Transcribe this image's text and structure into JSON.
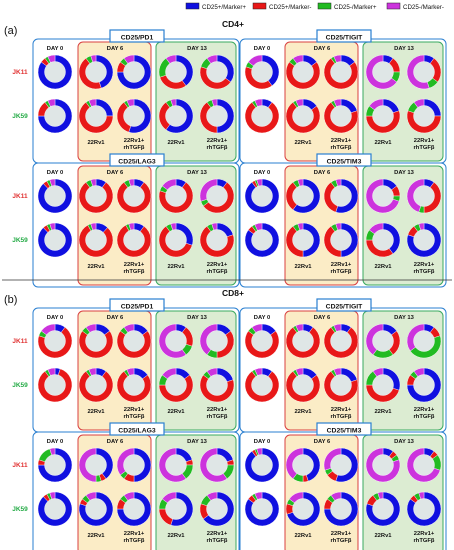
{
  "legend": [
    {
      "label": "CD25+/Marker+",
      "color": "#1010e0"
    },
    {
      "label": "CD25+/Marker-",
      "color": "#e81818"
    },
    {
      "label": "CD25-/Marker+",
      "color": "#22bb22"
    },
    {
      "label": "CD25-/Marker-",
      "color": "#cc33dd"
    }
  ],
  "colors": {
    "day0_box": "#2a7fd0",
    "day6_fill": "#fbecc6",
    "day6_border": "#d94040",
    "day13_fill": "#dcecd2",
    "day13_border": "#3aaa60",
    "panel_border": "#2a7fd0",
    "ring_hole": "#dfe6e6",
    "row_jk11": "#e03030",
    "row_jk59": "#22aa44"
  },
  "labels": {
    "day0": "DAY 0",
    "day6": "DAY 6",
    "day13": "DAY 13",
    "cond1": "22Rv1",
    "cond2_line1": "22Rv1+",
    "cond2_line2": "rhTGFβ"
  },
  "chart_data": {
    "type": "pie",
    "note_order": "each ring = fractions [CD25+/Marker+, CD25+/Marker-, CD25-/Marker+, CD25-/Marker-]; pies per panel row: day0, day6-22Rv1, day6-22Rv1+rhTGFβ, day13-22Rv1, day13-22Rv1+rhTGFβ",
    "sections": [
      {
        "letter": "(a)",
        "title": "CD4+",
        "panels": [
          {
            "title": "CD25/PD1",
            "rows": [
              {
                "name": "JK11",
                "pies": [
                  [
                    0.85,
                    0.05,
                    0.03,
                    0.07
                  ],
                  [
                    0.45,
                    0.45,
                    0.05,
                    0.05
                  ],
                  [
                    0.75,
                    0.1,
                    0.05,
                    0.1
                  ],
                  [
                    0.4,
                    0.3,
                    0.2,
                    0.1
                  ],
                  [
                    0.35,
                    0.45,
                    0.1,
                    0.1
                  ]
                ]
              },
              {
                "name": "JK59",
                "pies": [
                  [
                    0.75,
                    0.15,
                    0.03,
                    0.07
                  ],
                  [
                    0.25,
                    0.65,
                    0.03,
                    0.07
                  ],
                  [
                    0.55,
                    0.35,
                    0.03,
                    0.07
                  ],
                  [
                    0.6,
                    0.3,
                    0.05,
                    0.05
                  ],
                  [
                    0.5,
                    0.4,
                    0.05,
                    0.05
                  ]
                ]
              }
            ]
          },
          {
            "title": "CD25/TIGIT",
            "rows": [
              {
                "name": "JK11",
                "pies": [
                  [
                    0.4,
                    0.4,
                    0.05,
                    0.15
                  ],
                  [
                    0.15,
                    0.7,
                    0.05,
                    0.1
                  ],
                  [
                    0.15,
                    0.75,
                    0.03,
                    0.07
                  ],
                  [
                    0.1,
                    0.15,
                    0.1,
                    0.65
                  ],
                  [
                    0.1,
                    0.25,
                    0.1,
                    0.55
                  ]
                ]
              },
              {
                "name": "JK59",
                "pies": [
                  [
                    0.1,
                    0.8,
                    0.03,
                    0.07
                  ],
                  [
                    0.15,
                    0.75,
                    0.03,
                    0.07
                  ],
                  [
                    0.2,
                    0.7,
                    0.03,
                    0.07
                  ],
                  [
                    0.2,
                    0.55,
                    0.1,
                    0.15
                  ],
                  [
                    0.25,
                    0.55,
                    0.1,
                    0.1
                  ]
                ]
              }
            ]
          },
          {
            "title": "CD25/LAG3",
            "rows": [
              {
                "name": "JK11",
                "pies": [
                  [
                    0.88,
                    0.04,
                    0.03,
                    0.05
                  ],
                  [
                    0.1,
                    0.8,
                    0.05,
                    0.05
                  ],
                  [
                    0.1,
                    0.8,
                    0.05,
                    0.05
                  ],
                  [
                    0.1,
                    0.7,
                    0.05,
                    0.15
                  ],
                  [
                    0.1,
                    0.55,
                    0.05,
                    0.3
                  ]
                ]
              },
              {
                "name": "JK59",
                "pies": [
                  [
                    0.88,
                    0.04,
                    0.03,
                    0.05
                  ],
                  [
                    0.12,
                    0.8,
                    0.03,
                    0.05
                  ],
                  [
                    0.1,
                    0.82,
                    0.03,
                    0.05
                  ],
                  [
                    0.3,
                    0.6,
                    0.05,
                    0.05
                  ],
                  [
                    0.2,
                    0.7,
                    0.05,
                    0.05
                  ]
                ]
              }
            ]
          },
          {
            "title": "CD25/TIM3",
            "rows": [
              {
                "name": "JK11",
                "pies": [
                  [
                    0.9,
                    0.03,
                    0.02,
                    0.05
                  ],
                  [
                    0.6,
                    0.3,
                    0.05,
                    0.05
                  ],
                  [
                    0.55,
                    0.35,
                    0.05,
                    0.05
                  ],
                  [
                    0.15,
                    0.1,
                    0.05,
                    0.7
                  ],
                  [
                    0.1,
                    0.4,
                    0.05,
                    0.45
                  ]
                ]
              },
              {
                "name": "JK59",
                "pies": [
                  [
                    0.85,
                    0.05,
                    0.03,
                    0.07
                  ],
                  [
                    0.5,
                    0.4,
                    0.05,
                    0.05
                  ],
                  [
                    0.5,
                    0.4,
                    0.05,
                    0.05
                  ],
                  [
                    0.4,
                    0.35,
                    0.1,
                    0.15
                  ],
                  [
                    0.8,
                    0.1,
                    0.05,
                    0.05
                  ]
                ]
              }
            ]
          }
        ]
      },
      {
        "letter": "(b)",
        "title": "CD8+",
        "panels": [
          {
            "title": "CD25/PD1",
            "rows": [
              {
                "name": "JK11",
                "pies": [
                  [
                    0.1,
                    0.7,
                    0.05,
                    0.15
                  ],
                  [
                    0.15,
                    0.7,
                    0.05,
                    0.1
                  ],
                  [
                    0.15,
                    0.7,
                    0.05,
                    0.1
                  ],
                  [
                    0.1,
                    0.2,
                    0.1,
                    0.6
                  ],
                  [
                    0.15,
                    0.35,
                    0.1,
                    0.4
                  ]
                ]
              },
              {
                "name": "JK59",
                "pies": [
                  [
                    0.05,
                    0.85,
                    0.03,
                    0.07
                  ],
                  [
                    0.1,
                    0.8,
                    0.03,
                    0.07
                  ],
                  [
                    0.15,
                    0.75,
                    0.03,
                    0.07
                  ],
                  [
                    0.15,
                    0.6,
                    0.1,
                    0.15
                  ],
                  [
                    0.2,
                    0.65,
                    0.05,
                    0.1
                  ]
                ]
              }
            ]
          },
          {
            "title": "CD25/TIGIT",
            "rows": [
              {
                "name": "JK11",
                "pies": [
                  [
                    0.15,
                    0.7,
                    0.05,
                    0.1
                  ],
                  [
                    0.1,
                    0.8,
                    0.03,
                    0.07
                  ],
                  [
                    0.1,
                    0.8,
                    0.03,
                    0.07
                  ],
                  [
                    0.15,
                    0.25,
                    0.2,
                    0.4
                  ],
                  [
                    0.1,
                    0.1,
                    0.45,
                    0.35
                  ]
                ]
              },
              {
                "name": "JK59",
                "pies": [
                  [
                    0.1,
                    0.8,
                    0.03,
                    0.07
                  ],
                  [
                    0.15,
                    0.75,
                    0.03,
                    0.07
                  ],
                  [
                    0.2,
                    0.7,
                    0.03,
                    0.07
                  ],
                  [
                    0.3,
                    0.45,
                    0.15,
                    0.1
                  ],
                  [
                    0.75,
                    0.1,
                    0.05,
                    0.1
                  ]
                ]
              }
            ]
          },
          {
            "title": "CD25/LAG3",
            "rows": [
              {
                "name": "JK11",
                "pies": [
                  [
                    0.75,
                    0.05,
                    0.15,
                    0.05
                  ],
                  [
                    0.4,
                    0.05,
                    0.05,
                    0.5
                  ],
                  [
                    0.5,
                    0.1,
                    0.05,
                    0.35
                  ],
                  [
                    0.2,
                    0.05,
                    0.15,
                    0.6
                  ],
                  [
                    0.2,
                    0.05,
                    0.15,
                    0.6
                  ]
                ]
              },
              {
                "name": "JK59",
                "pies": [
                  [
                    0.88,
                    0.04,
                    0.03,
                    0.05
                  ],
                  [
                    0.8,
                    0.05,
                    0.05,
                    0.1
                  ],
                  [
                    0.75,
                    0.1,
                    0.05,
                    0.1
                  ],
                  [
                    0.55,
                    0.2,
                    0.1,
                    0.15
                  ],
                  [
                    0.65,
                    0.15,
                    0.1,
                    0.1
                  ]
                ]
              }
            ]
          },
          {
            "title": "CD25/TIM3",
            "rows": [
              {
                "name": "JK11",
                "pies": [
                  [
                    0.9,
                    0.03,
                    0.02,
                    0.05
                  ],
                  [
                    0.45,
                    0.05,
                    0.1,
                    0.4
                  ],
                  [
                    0.55,
                    0.1,
                    0.05,
                    0.3
                  ],
                  [
                    0.1,
                    0.05,
                    0.05,
                    0.8
                  ],
                  [
                    0.1,
                    0.05,
                    0.15,
                    0.7
                  ]
                ]
              },
              {
                "name": "JK59",
                "pies": [
                  [
                    0.85,
                    0.05,
                    0.03,
                    0.07
                  ],
                  [
                    0.7,
                    0.1,
                    0.05,
                    0.15
                  ],
                  [
                    0.75,
                    0.1,
                    0.05,
                    0.1
                  ],
                  [
                    0.8,
                    0.1,
                    0.05,
                    0.05
                  ],
                  [
                    0.85,
                    0.05,
                    0.05,
                    0.05
                  ]
                ]
              }
            ]
          }
        ]
      }
    ]
  }
}
